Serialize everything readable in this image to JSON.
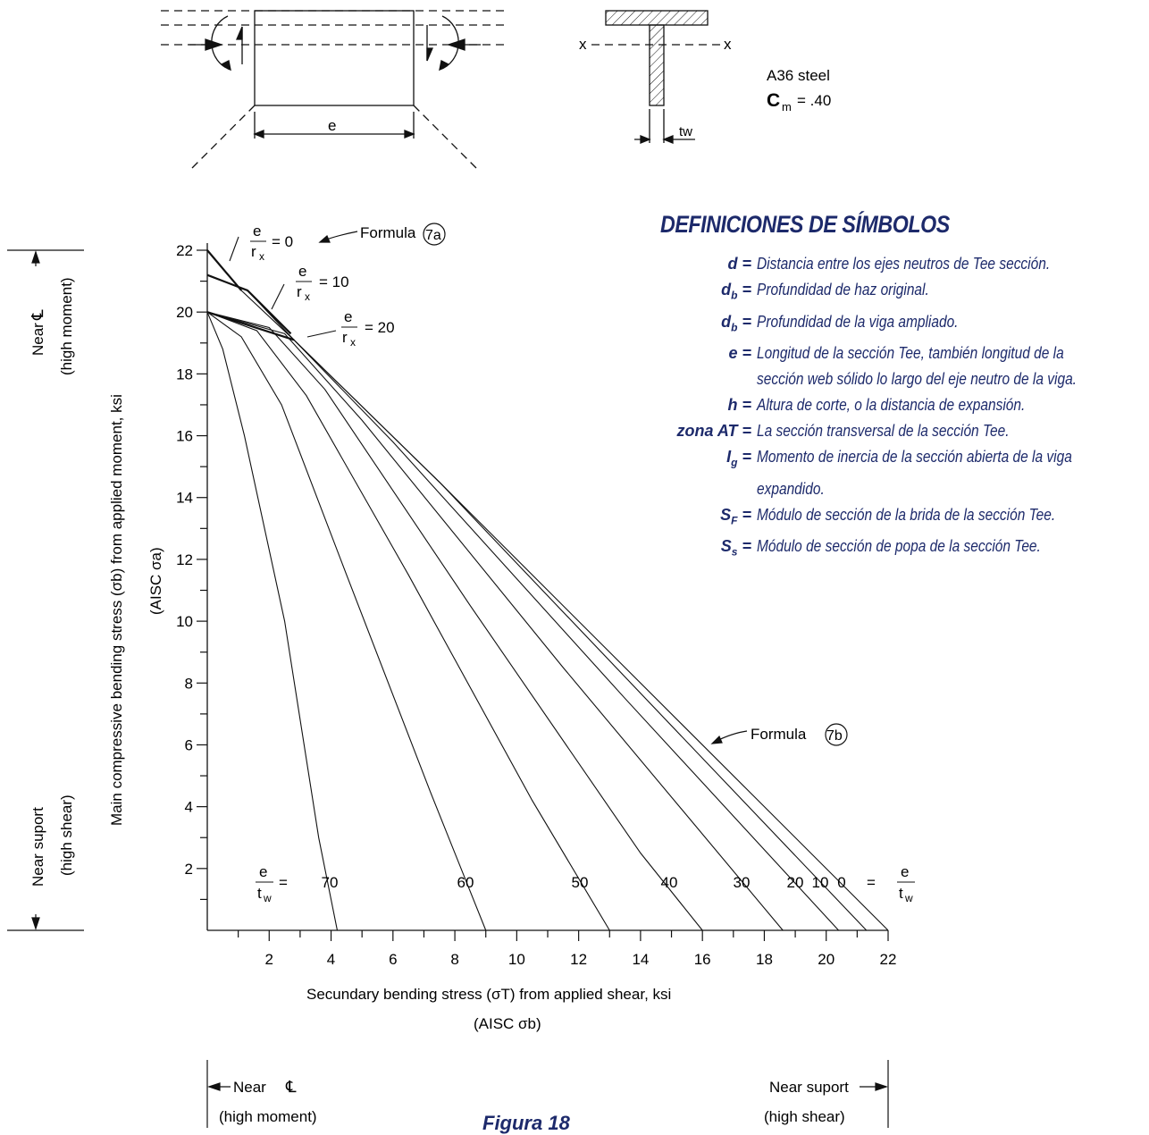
{
  "top_diagrams": {
    "beam_dimension_label": "e",
    "axis_left": "x",
    "axis_right": "x",
    "web_thickness_label": "tw",
    "steel_grade": "A36 steel",
    "cm_symbol": "C",
    "cm_subscript": "m",
    "cm_value": "= .40"
  },
  "definitions": {
    "title": "DEFINICIONES DE SÍMBOLOS",
    "items": [
      {
        "sym": "d =",
        "sub": "",
        "text": "Distancia entre los ejes neutros de Tee sección."
      },
      {
        "sym": "d",
        "sub": "b",
        "eq": " =",
        "text": "Profundidad de haz original."
      },
      {
        "sym": "d",
        "sub": "b",
        "eq": " =",
        "text": "Profundidad de la viga ampliado."
      },
      {
        "sym": "e =",
        "sub": "",
        "text": "Longitud de la sección Tee, también longitud de la"
      },
      {
        "sym": "",
        "sub": "",
        "text": "sección web sólido lo largo del eje neutro de la viga."
      },
      {
        "sym": "h =",
        "sub": "",
        "text": "Altura de corte, o la distancia de expansión."
      },
      {
        "sym": "zona AT =",
        "sub": "",
        "text": "La sección transversal de la sección Tee."
      },
      {
        "sym": "I",
        "sub": "g",
        "eq": " =",
        "text": "Momento de inercia de la sección abierta de la viga"
      },
      {
        "sym": "",
        "sub": "",
        "text": "expandido."
      },
      {
        "sym": "S",
        "sub": "F",
        "eq": " =",
        "text": "Módulo de sección de la brida de la sección Tee."
      },
      {
        "sym": "S",
        "sub": "s",
        "eq": " =",
        "text": "Módulo de sección de popa de la sección Tee."
      }
    ]
  },
  "chart": {
    "y_axis_label_main": "Main compressive bending stress (σb) from applied moment, ksi",
    "y_axis_label_sub": "(AISC σa)",
    "x_axis_label_main": "Secundary bending stress (σT) from applied shear, ksi",
    "x_axis_label_sub": "(AISC σb)",
    "left_top_label": "Near",
    "left_top_sub": "(high moment)",
    "left_bottom_label": "Near suport",
    "left_bottom_sub": "(high shear)",
    "bottom_left_label": "Near",
    "bottom_left_sub": "(high moment)",
    "bottom_right_label": "Near suport",
    "bottom_right_sub": "(high shear)",
    "formula_7a": "Formula",
    "formula_7a_num": "7a",
    "formula_7b": "Formula",
    "formula_7b_num": "7b",
    "e_rx_labels": [
      "= 0",
      "= 10",
      "= 20"
    ],
    "e_tw_prefix": "=",
    "e_tw_suffix": "=",
    "frac_num": "e",
    "frac_den_rx": "r",
    "frac_den_rx_sub": "x",
    "frac_den_tw": "t",
    "frac_den_tw_sub": "w"
  },
  "chart_data": {
    "type": "line",
    "xlabel": "Secundary bending stress (σT) from applied shear, ksi (AISC σb)",
    "ylabel": "Main compressive bending stress (σb) from applied moment, ksi (AISC σa)",
    "xlim": [
      0,
      22
    ],
    "ylim": [
      0,
      22
    ],
    "x_ticks": [
      2,
      4,
      6,
      8,
      10,
      12,
      14,
      16,
      18,
      20,
      22
    ],
    "y_ticks": [
      2,
      4,
      6,
      8,
      10,
      12,
      14,
      16,
      18,
      20,
      22
    ],
    "series": [
      {
        "name": "70",
        "points": [
          [
            0,
            20
          ],
          [
            0.5,
            18.8
          ],
          [
            1.2,
            16
          ],
          [
            2.5,
            10
          ],
          [
            3.6,
            3
          ],
          [
            4.2,
            0
          ]
        ]
      },
      {
        "name": "60",
        "points": [
          [
            0,
            20
          ],
          [
            1.1,
            19.2
          ],
          [
            2.4,
            17
          ],
          [
            4.5,
            11.5
          ],
          [
            7.2,
            4.5
          ],
          [
            9.0,
            0
          ]
        ]
      },
      {
        "name": "50",
        "points": [
          [
            0,
            20
          ],
          [
            1.6,
            19.4
          ],
          [
            3.2,
            17.3
          ],
          [
            6.5,
            11.5
          ],
          [
            10.5,
            4.2
          ],
          [
            13.0,
            0
          ]
        ]
      },
      {
        "name": "40",
        "points": [
          [
            0,
            20
          ],
          [
            2.0,
            19.5
          ],
          [
            3.8,
            17.5
          ],
          [
            8.5,
            10.5
          ],
          [
            14.0,
            2.5
          ],
          [
            16.0,
            0
          ]
        ]
      },
      {
        "name": "30",
        "points": [
          [
            0,
            20
          ],
          [
            2.5,
            19.3
          ],
          [
            5.0,
            16.5
          ],
          [
            11.5,
            8.5
          ],
          [
            18.6,
            0
          ]
        ]
      },
      {
        "name": "20",
        "points": [
          [
            0,
            20
          ],
          [
            2.8,
            19.1
          ],
          [
            6.0,
            15.8
          ],
          [
            13.5,
            7.5
          ],
          [
            20.4,
            0
          ]
        ]
      },
      {
        "name": "10",
        "points": [
          [
            0,
            21.2
          ],
          [
            1.3,
            20.7
          ],
          [
            2.8,
            19.1
          ],
          [
            7.5,
            14.5
          ],
          [
            21.3,
            0
          ]
        ]
      },
      {
        "name": "0",
        "points": [
          [
            0,
            22
          ],
          [
            1.1,
            20.7
          ],
          [
            2.8,
            19.1
          ],
          [
            7.5,
            14.5
          ],
          [
            22,
            0
          ]
        ]
      }
    ],
    "e_rx_curves": [
      {
        "name": "e/rx = 0",
        "points": [
          [
            0,
            22
          ],
          [
            1.1,
            20.7
          ]
        ]
      },
      {
        "name": "e/rx = 10",
        "points": [
          [
            0,
            21.2
          ],
          [
            1.3,
            20.7
          ],
          [
            2.7,
            19.3
          ]
        ]
      },
      {
        "name": "e/rx = 20",
        "points": [
          [
            0,
            20
          ],
          [
            2.8,
            19.1
          ]
        ]
      }
    ]
  },
  "caption": "Figura 18"
}
